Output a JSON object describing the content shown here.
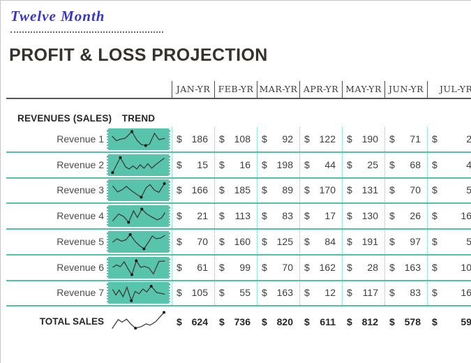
{
  "page": {
    "tab_title": "Twelve Month",
    "title": "PROFIT & LOSS PROJECTION"
  },
  "colors": {
    "accent_teal_line": "#4fc2a7",
    "accent_teal_fill": "#58c4ab",
    "tab_title_blue": "#3737c4",
    "title_dark": "#37312c",
    "header_rule_gray": "#585858",
    "sparkline_stroke": "#3c3c3c"
  },
  "table": {
    "section_header": "REVENUES (SALES)",
    "trend_header": "TREND",
    "currency_symbol": "$",
    "months": [
      "JAN-YR",
      "FEB-YR",
      "MAR-YR",
      "APR-YR",
      "MAY-YR",
      "JUN-YR",
      "JUL-YR"
    ],
    "note": "JUL-YR column is clipped at the right edge of the screen; only partial digits are visible",
    "rows": [
      {
        "label": "Revenue 1",
        "values": [
          "186",
          "108",
          "92",
          "122",
          "190",
          "71"
        ],
        "last_partial": "2",
        "spark": {
          "points": [
            [
              0.02,
              0.32
            ],
            [
              0.1,
              0.58
            ],
            [
              0.17,
              0.5
            ],
            [
              0.26,
              0.44
            ],
            [
              0.38,
              0.06
            ],
            [
              0.47,
              0.55
            ],
            [
              0.55,
              0.8
            ],
            [
              0.63,
              0.86
            ],
            [
              0.7,
              0.78
            ],
            [
              0.79,
              0.16
            ],
            [
              0.87,
              0.52
            ],
            [
              0.98,
              0.45
            ]
          ],
          "dots": [
            4,
            7
          ]
        }
      },
      {
        "label": "Revenue 2",
        "values": [
          "15",
          "16",
          "198",
          "44",
          "25",
          "68"
        ],
        "last_partial": "4",
        "spark": {
          "points": [
            [
              0.03,
              0.93
            ],
            [
              0.17,
              0.07
            ],
            [
              0.27,
              0.62
            ],
            [
              0.33,
              0.72
            ],
            [
              0.4,
              0.55
            ],
            [
              0.47,
              0.72
            ],
            [
              0.53,
              0.48
            ],
            [
              0.6,
              0.68
            ],
            [
              0.67,
              0.42
            ],
            [
              0.74,
              0.68
            ],
            [
              0.82,
              0.45
            ],
            [
              0.97,
              0.1
            ]
          ],
          "dots": [
            0,
            1
          ]
        }
      },
      {
        "label": "Revenue 3",
        "values": [
          "166",
          "185",
          "89",
          "170",
          "131",
          "70"
        ],
        "last_partial": "5",
        "spark": {
          "points": [
            [
              0.03,
              0.25
            ],
            [
              0.12,
              0.6
            ],
            [
              0.2,
              0.48
            ],
            [
              0.28,
              0.28
            ],
            [
              0.37,
              0.52
            ],
            [
              0.46,
              0.72
            ],
            [
              0.55,
              0.9
            ],
            [
              0.64,
              0.35
            ],
            [
              0.71,
              0.18
            ],
            [
              0.79,
              0.5
            ],
            [
              0.87,
              0.62
            ],
            [
              0.97,
              0.12
            ]
          ],
          "dots": [
            6,
            11
          ]
        }
      },
      {
        "label": "Revenue 4",
        "values": [
          "21",
          "113",
          "83",
          "17",
          "130",
          "26"
        ],
        "last_partial": "16",
        "spark": {
          "points": [
            [
              0.03,
              0.78
            ],
            [
              0.14,
              0.38
            ],
            [
              0.23,
              0.52
            ],
            [
              0.32,
              0.86
            ],
            [
              0.41,
              0.2
            ],
            [
              0.48,
              0.58
            ],
            [
              0.56,
              0.1
            ],
            [
              0.65,
              0.38
            ],
            [
              0.74,
              0.55
            ],
            [
              0.84,
              0.72
            ],
            [
              0.92,
              0.6
            ],
            [
              0.98,
              0.3
            ]
          ],
          "dots": [
            3,
            6
          ]
        }
      },
      {
        "label": "Revenue 5",
        "values": [
          "70",
          "160",
          "125",
          "84",
          "191",
          "97"
        ],
        "last_partial": "5",
        "spark": {
          "points": [
            [
              0.03,
              0.52
            ],
            [
              0.11,
              0.32
            ],
            [
              0.19,
              0.46
            ],
            [
              0.27,
              0.38
            ],
            [
              0.35,
              0.08
            ],
            [
              0.44,
              0.48
            ],
            [
              0.52,
              0.72
            ],
            [
              0.6,
              0.9
            ],
            [
              0.68,
              0.52
            ],
            [
              0.75,
              0.16
            ],
            [
              0.82,
              0.32
            ],
            [
              0.9,
              0.28
            ],
            [
              0.98,
              0.12
            ]
          ],
          "dots": [
            4,
            7
          ]
        }
      },
      {
        "label": "Revenue 6",
        "values": [
          "61",
          "99",
          "70",
          "162",
          "28",
          "163"
        ],
        "last_partial": "10",
        "spark": {
          "points": [
            [
              0.03,
              0.48
            ],
            [
              0.1,
              0.34
            ],
            [
              0.17,
              0.44
            ],
            [
              0.24,
              0.16
            ],
            [
              0.31,
              0.56
            ],
            [
              0.38,
              0.9
            ],
            [
              0.46,
              0.1
            ],
            [
              0.54,
              0.48
            ],
            [
              0.61,
              0.42
            ],
            [
              0.69,
              0.52
            ],
            [
              0.77,
              0.86
            ],
            [
              0.87,
              0.14
            ],
            [
              0.98,
              0.12
            ]
          ],
          "dots": [
            5,
            6
          ]
        }
      },
      {
        "label": "Revenue 7",
        "values": [
          "105",
          "55",
          "163",
          "12",
          "117",
          "83"
        ],
        "last_partial": "16",
        "spark": {
          "points": [
            [
              0.03,
              0.3
            ],
            [
              0.09,
              0.62
            ],
            [
              0.15,
              0.34
            ],
            [
              0.22,
              0.72
            ],
            [
              0.29,
              0.18
            ],
            [
              0.37,
              0.95
            ],
            [
              0.44,
              0.42
            ],
            [
              0.51,
              0.55
            ],
            [
              0.58,
              0.28
            ],
            [
              0.65,
              0.45
            ],
            [
              0.73,
              0.12
            ],
            [
              0.83,
              0.48
            ],
            [
              0.98,
              0.58
            ]
          ],
          "dots": [
            5,
            10
          ]
        }
      }
    ],
    "total": {
      "label": "TOTAL SALES",
      "values": [
        "624",
        "736",
        "820",
        "611",
        "812",
        "578"
      ],
      "last_partial": "59",
      "spark": {
        "points": [
          [
            0.02,
            0.8
          ],
          [
            0.13,
            0.38
          ],
          [
            0.2,
            0.5
          ],
          [
            0.28,
            0.36
          ],
          [
            0.36,
            0.6
          ],
          [
            0.44,
            0.78
          ],
          [
            0.55,
            0.7
          ],
          [
            0.63,
            0.58
          ],
          [
            0.7,
            0.64
          ],
          [
            0.8,
            0.48
          ],
          [
            0.95,
            0.05
          ]
        ],
        "dots": [
          5,
          10
        ]
      }
    }
  }
}
